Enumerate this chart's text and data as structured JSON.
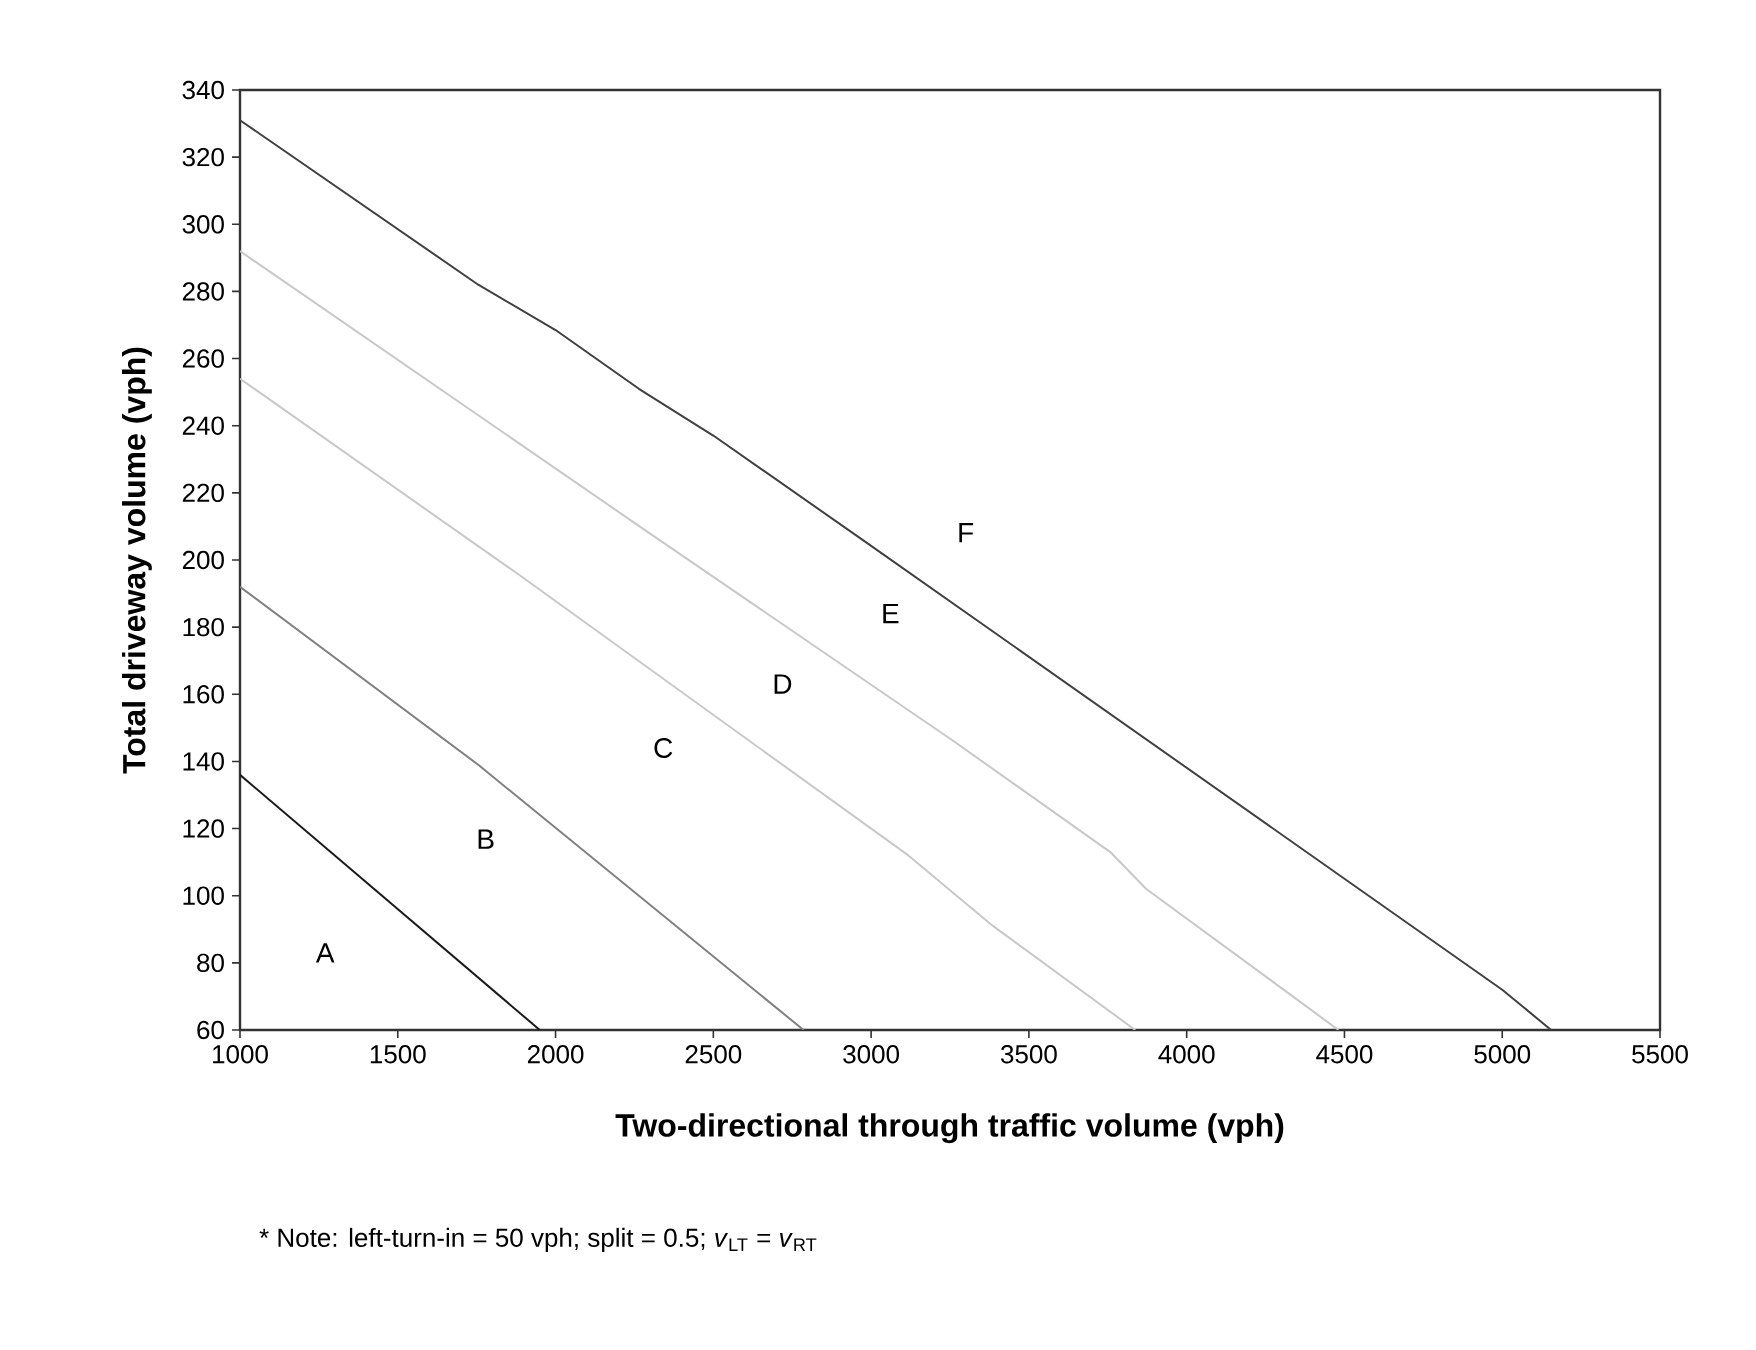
{
  "chart_data": {
    "type": "line",
    "xlabel": "Two-directional through traffic volume (vph)",
    "ylabel": "Total driveway volume (vph)",
    "xlim": [
      1000,
      5500
    ],
    "xticks": [
      1000,
      1500,
      2000,
      2500,
      3000,
      3500,
      4000,
      4500,
      5000,
      5500
    ],
    "ylim": [
      60,
      340
    ],
    "yticks": [
      60,
      80,
      100,
      120,
      140,
      160,
      180,
      200,
      220,
      240,
      260,
      280,
      300,
      320,
      340
    ],
    "grid": false,
    "marker": "none",
    "line_style": "solid",
    "series": [
      {
        "color": "#1a1a1a",
        "x": [
          1000,
          1950
        ],
        "values": [
          136,
          60
        ]
      },
      {
        "color": "#808080",
        "x": [
          1000,
          1755,
          2786
        ],
        "values": [
          192,
          139,
          60
        ]
      },
      {
        "color": "#c8c8c8",
        "x": [
          1000,
          1893,
          3118,
          3386,
          3837
        ],
        "values": [
          254,
          195,
          112,
          91,
          60
        ]
      },
      {
        "color": "#c8c8c8",
        "x": [
          1000,
          2251,
          3262,
          3758,
          3872,
          4264,
          4481
        ],
        "values": [
          292,
          211,
          146,
          113,
          102,
          75,
          60
        ]
      },
      {
        "color": "#404040",
        "x": [
          1000,
          1755,
          2000,
          2264,
          2501,
          2973,
          5000,
          5155
        ],
        "values": [
          331,
          282,
          268.5,
          251,
          237,
          206,
          72,
          60
        ]
      }
    ],
    "annotations": [
      "A",
      "B",
      "C",
      "D",
      "E",
      "F",
      "* Note: left-turn-in = 50 vph; split = 0.5;  *v*$_{LT}$ = *v*$_{RT}$"
    ]
  }
}
